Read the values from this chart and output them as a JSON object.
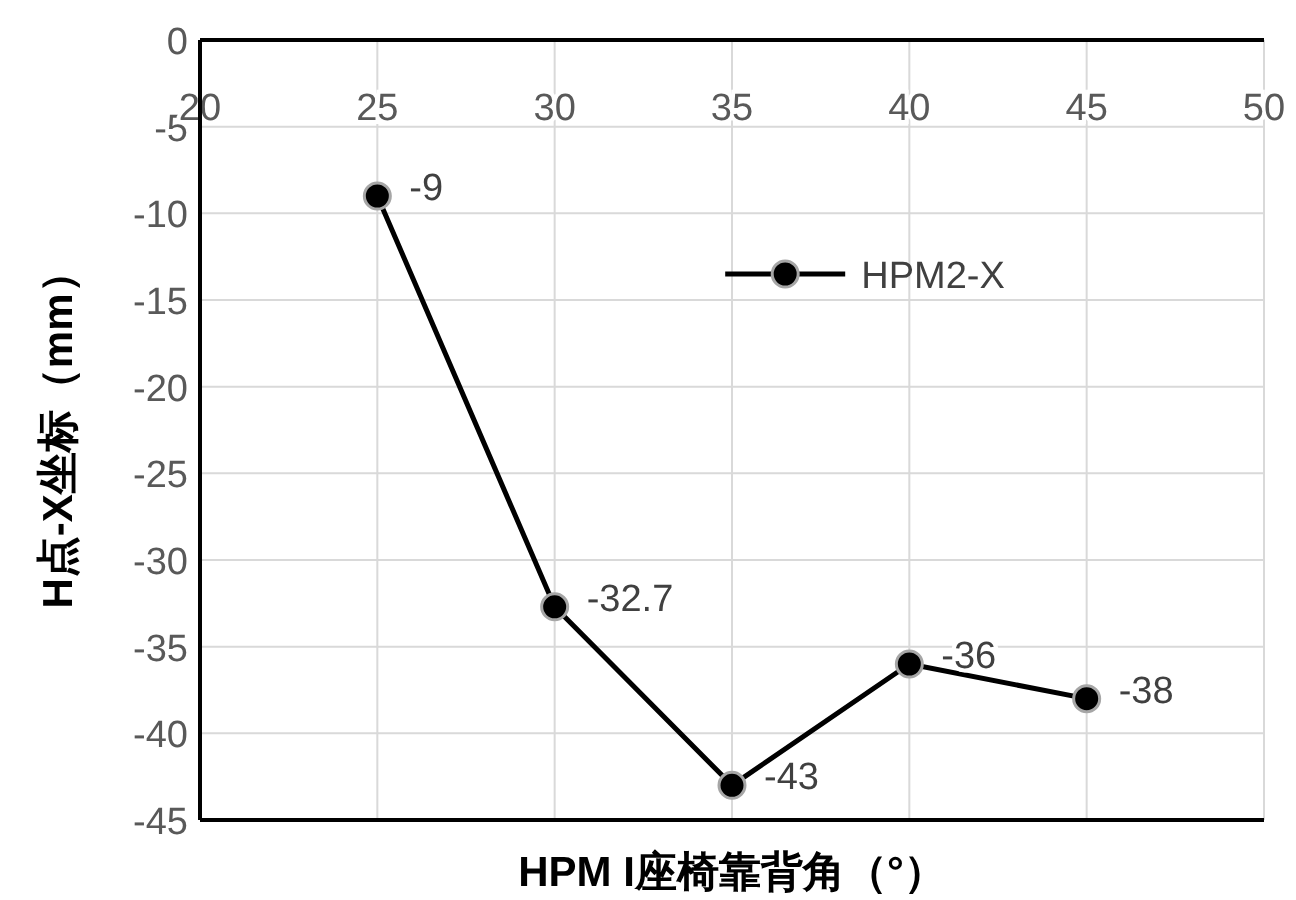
{
  "chart_data": {
    "type": "line",
    "xlabel": "HPM I座椅靠背角（°）",
    "ylabel": "H点-X坐标（mm）",
    "x": [
      25,
      30,
      35,
      40,
      45
    ],
    "series": [
      {
        "name": "HPM2-X",
        "color": "#000000",
        "values": [
          -9,
          -32.7,
          -43,
          -36,
          -38
        ]
      }
    ],
    "xlim": [
      20,
      50
    ],
    "xticks": [
      20,
      25,
      30,
      35,
      40,
      45,
      50
    ],
    "ylim": [
      -45,
      0
    ],
    "yticks": [
      -45,
      -40,
      -35,
      -30,
      -25,
      -20,
      -15,
      -10,
      -5,
      0
    ],
    "grid": true,
    "legend": "top right",
    "marker": "circle",
    "line_style": "solid",
    "data_labels": true
  }
}
